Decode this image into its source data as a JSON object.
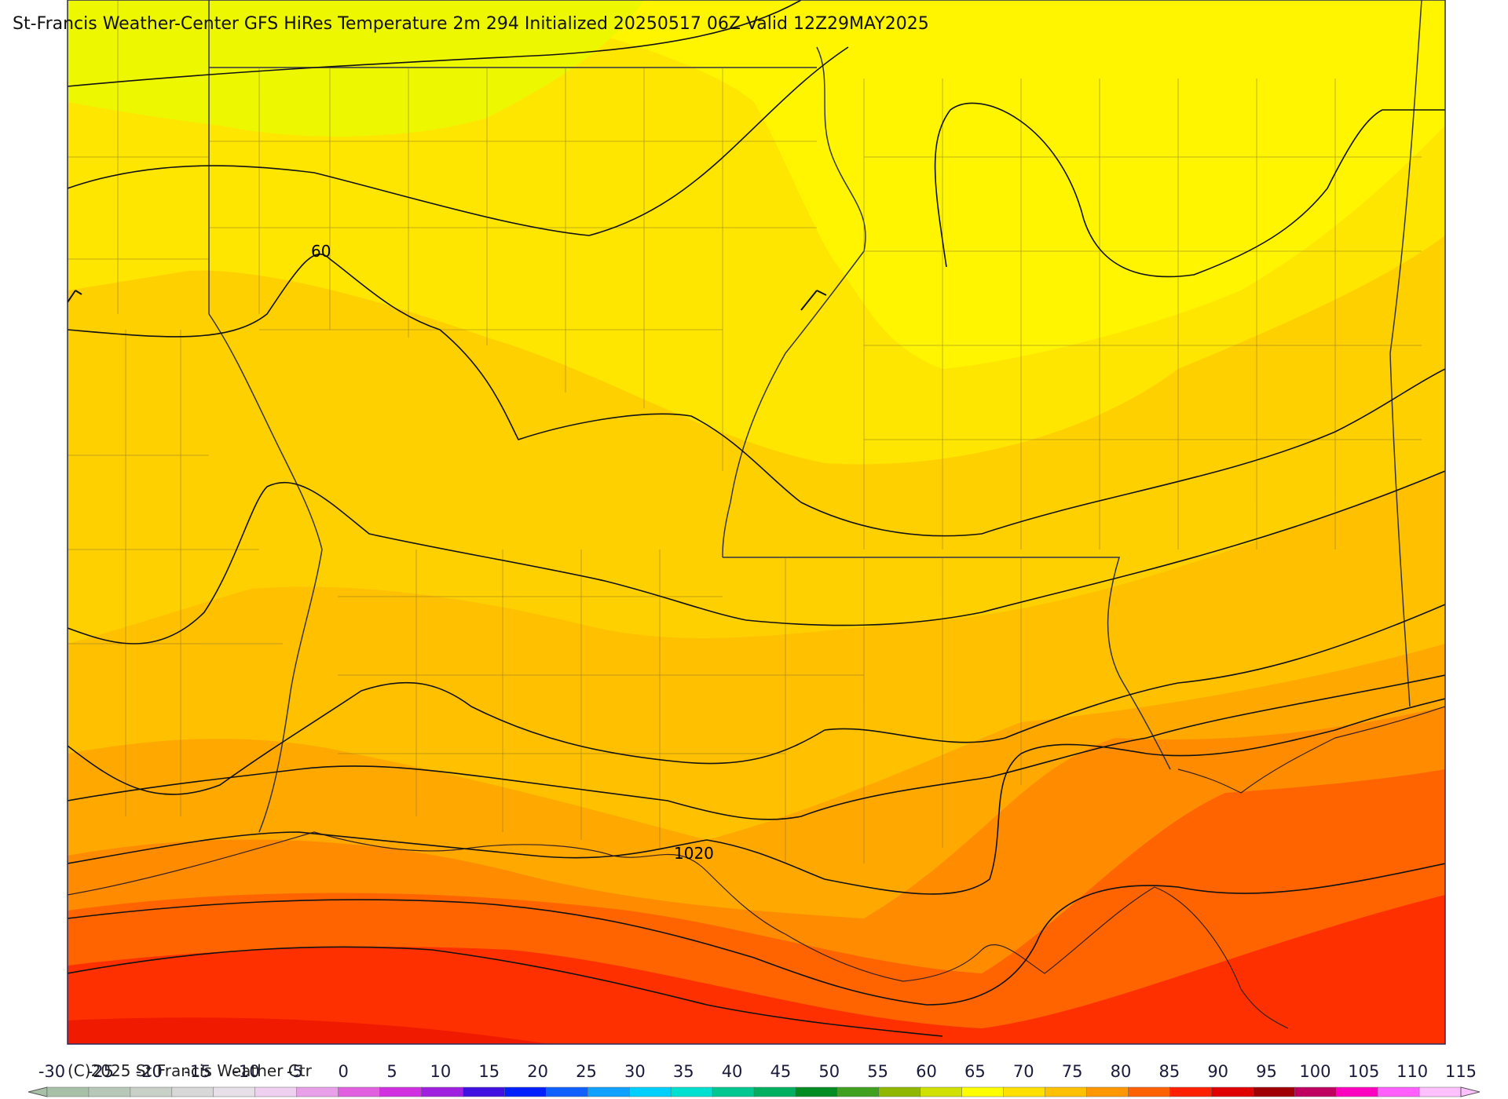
{
  "title": "St-Francis Weather-Center GFS HiRes Temperature 2m  294 Initialized 20250517 06Z Valid 12Z29MAY2025",
  "copyright": "(C)2025 St Francis Weather Ctr",
  "contour_labels": {
    "temperature": "60",
    "pressure": "1020"
  },
  "legend": {
    "ticks": [
      "-30",
      "-25",
      "-20",
      "-15",
      "-10",
      "-5",
      "0",
      "5",
      "10",
      "15",
      "20",
      "25",
      "30",
      "35",
      "40",
      "45",
      "50",
      "55",
      "60",
      "65",
      "70",
      "75",
      "80",
      "85",
      "90",
      "95",
      "100",
      "105",
      "110",
      "115"
    ],
    "colors": [
      "#a8c0a8",
      "#b8c8b8",
      "#c8d0c8",
      "#d8d8d8",
      "#e8e0e8",
      "#f0d0f0",
      "#e8a0e8",
      "#e060e0",
      "#d030e0",
      "#a020e0",
      "#4010e0",
      "#0020ff",
      "#1060ff",
      "#10a0ff",
      "#00d0ff",
      "#00e0d0",
      "#00c890",
      "#00b060",
      "#008c20",
      "#40a020",
      "#90b800",
      "#d0e000",
      "#ffff00",
      "#ffe000",
      "#ffc000",
      "#ff9800",
      "#ff6000",
      "#ff2000",
      "#e00000",
      "#a00000",
      "#c00060",
      "#ff00c0",
      "#ff60ff",
      "#ffc0ff"
    ]
  },
  "colors": {
    "land_cool": "#ffee00",
    "land_warm": "#ffc800",
    "coast": "#ff5000",
    "gulf": "#ff2a00",
    "north_green": "#e8f400",
    "outline": "#2a2a5a"
  }
}
